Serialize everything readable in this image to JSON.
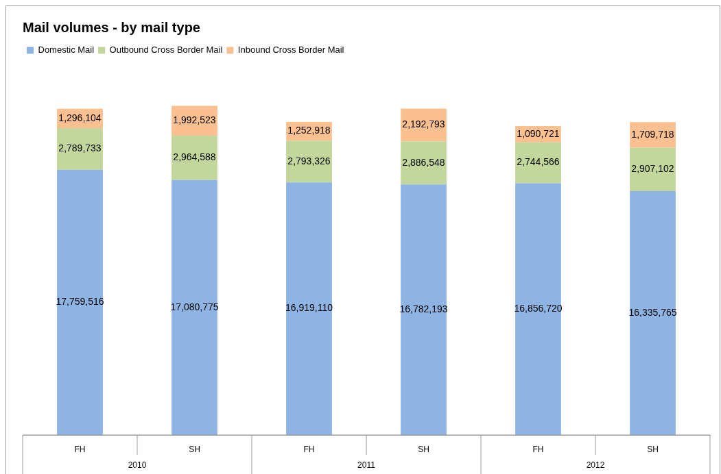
{
  "chart_data": {
    "type": "bar",
    "title": "Mail volumes - by mail type",
    "stacked": true,
    "legend": "top left",
    "grid": false,
    "tick_labels": "x",
    "categories": [
      "FH",
      "SH",
      "FH",
      "SH",
      "FH",
      "SH"
    ],
    "annotations": [
      "2010",
      "2011",
      "2012"
    ],
    "series": [
      {
        "name": "Domestic Mail",
        "color": "#8eb4e3",
        "values": [
          17759516,
          17080775,
          16919110,
          16782193,
          16856720,
          16335765
        ],
        "value_labels": [
          "17,759,516",
          "17,080,775",
          "16,919,110",
          "16,782,193",
          "16,856,720",
          "16,335,765"
        ]
      },
      {
        "name": "Outbound Cross Border Mail",
        "color": "#c3d69b",
        "values": [
          2789733,
          2964588,
          2793326,
          2886548,
          2744566,
          2907102
        ],
        "value_labels": [
          "2,789,733",
          "2,964,588",
          "2,793,326",
          "2,886,548",
          "2,744,566",
          "2,907,102"
        ]
      },
      {
        "name": "Inbound Cross Border Mail",
        "color": "#fac090",
        "values": [
          1296104,
          1992523,
          1252918,
          2192793,
          1090721,
          1709718
        ],
        "value_labels": [
          "1,296,104",
          "1,992,523",
          "1,252,918",
          "2,192,793",
          "1,090,721",
          "1,709,718"
        ]
      }
    ]
  }
}
